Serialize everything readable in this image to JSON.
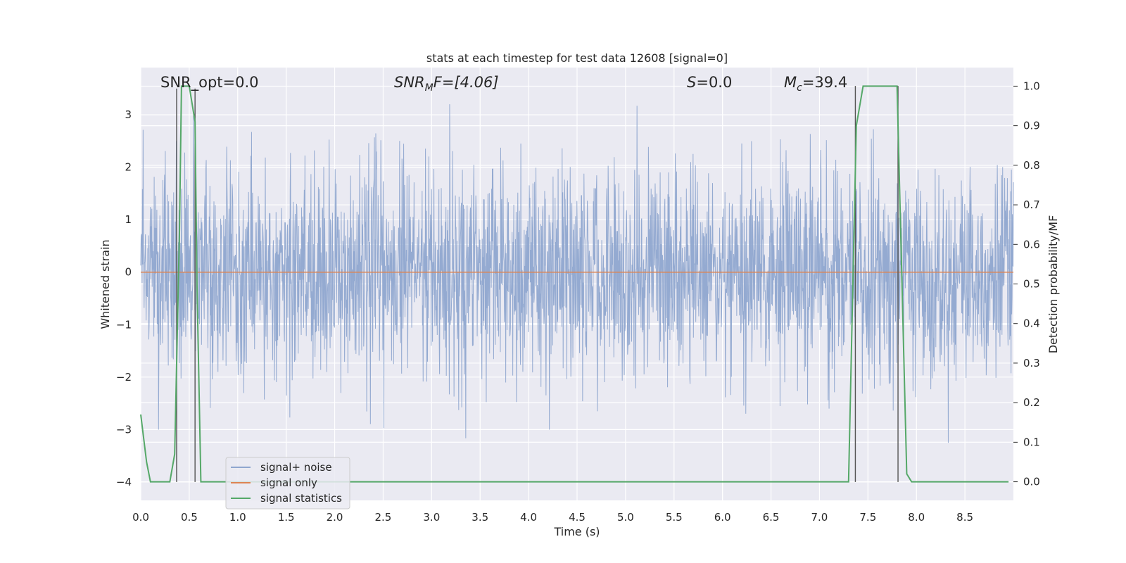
{
  "chart_data": {
    "type": "line",
    "title": "stats at each timestep for test data 12608 [signal=0]",
    "xlabel": "Time (s)",
    "ylabel": "Whitened strain",
    "y2label": "Detection probability/MF",
    "xlim": [
      0,
      9
    ],
    "ylim": [
      -4.35,
      3.9
    ],
    "y2lim": [
      -0.047,
      1.047
    ],
    "grid": true,
    "x_ticks": [
      0.0,
      0.5,
      1.0,
      1.5,
      2.0,
      2.5,
      3.0,
      3.5,
      4.0,
      4.5,
      5.0,
      5.5,
      6.0,
      6.5,
      7.0,
      7.5,
      8.0,
      8.5
    ],
    "x_tick_labels": [
      "0.0",
      "0.5",
      "1.0",
      "1.5",
      "2.0",
      "2.5",
      "3.0",
      "3.5",
      "4.0",
      "4.5",
      "5.0",
      "5.5",
      "6.0",
      "6.5",
      "7.0",
      "7.5",
      "8.0",
      "8.5"
    ],
    "y_ticks": [
      3,
      2,
      1,
      0,
      -1,
      -2,
      -3,
      -4
    ],
    "y_tick_labels": [
      "3",
      "2",
      "1",
      "0",
      "−1",
      "−2",
      "−3",
      "−4"
    ],
    "y2_ticks": [
      1.0,
      0.9,
      0.8,
      0.7,
      0.6,
      0.5,
      0.4,
      0.3,
      0.2,
      0.1,
      0.0
    ],
    "y2_tick_labels": [
      "1.0",
      "0.9",
      "0.8",
      "0.7",
      "0.6",
      "0.5",
      "0.4",
      "0.3",
      "0.2",
      "0.1",
      "0.0"
    ],
    "annotations": {
      "snr_opt": "SNR_opt=0.0",
      "snr_mf_main": "SNR",
      "snr_mf_sub": "M",
      "snr_mf_rest": "F=[4.06]",
      "s_italic": "S",
      "s_rest": "=0.0",
      "mc_main": "M",
      "mc_sub": "c",
      "mc_rest": "=39.4"
    },
    "legend": {
      "placement": "lower-left",
      "entries": [
        "signal+ noise",
        "signal only",
        "signal statistics"
      ]
    },
    "series": [
      {
        "name": "signal+ noise",
        "color": "#8fa6cf",
        "kind": "noise",
        "duration": 9.0,
        "typical_range": [
          -1.75,
          1.75
        ],
        "peak_range": [
          -4.0,
          3.2
        ]
      },
      {
        "name": "signal only",
        "color": "#dd8452",
        "x": [
          0,
          9
        ],
        "y": [
          0,
          0
        ]
      },
      {
        "name": "signal statistics",
        "color": "#55a868",
        "axis": "right",
        "x": [
          0.0,
          0.06,
          0.1,
          0.3,
          0.35,
          0.4,
          0.42,
          0.45,
          0.5,
          0.56,
          0.58,
          0.62,
          0.7,
          1.0,
          7.3,
          7.38,
          7.45,
          7.5,
          7.8,
          7.9,
          7.95,
          8.5,
          8.95
        ],
        "y": [
          0.17,
          0.05,
          0.0,
          0.0,
          0.07,
          0.64,
          1.0,
          1.0,
          1.0,
          0.91,
          0.5,
          0.0,
          0.0,
          0.0,
          0.0,
          0.9,
          1.0,
          1.0,
          1.0,
          0.02,
          0.0,
          0.0,
          0.0
        ]
      }
    ],
    "vertical_lines": [
      {
        "x": 0.37,
        "ymin_strain": -4.0,
        "ymax_strain": 3.5
      },
      {
        "x": 0.56,
        "ymin_strain": -4.0,
        "ymax_strain": 3.5
      },
      {
        "x": 7.37,
        "ymin_strain": -4.0,
        "ymax_strain": 3.55
      },
      {
        "x": 7.81,
        "ymin_strain": -4.0,
        "ymax_strain": 3.55
      }
    ],
    "vline_color": "#555555"
  }
}
